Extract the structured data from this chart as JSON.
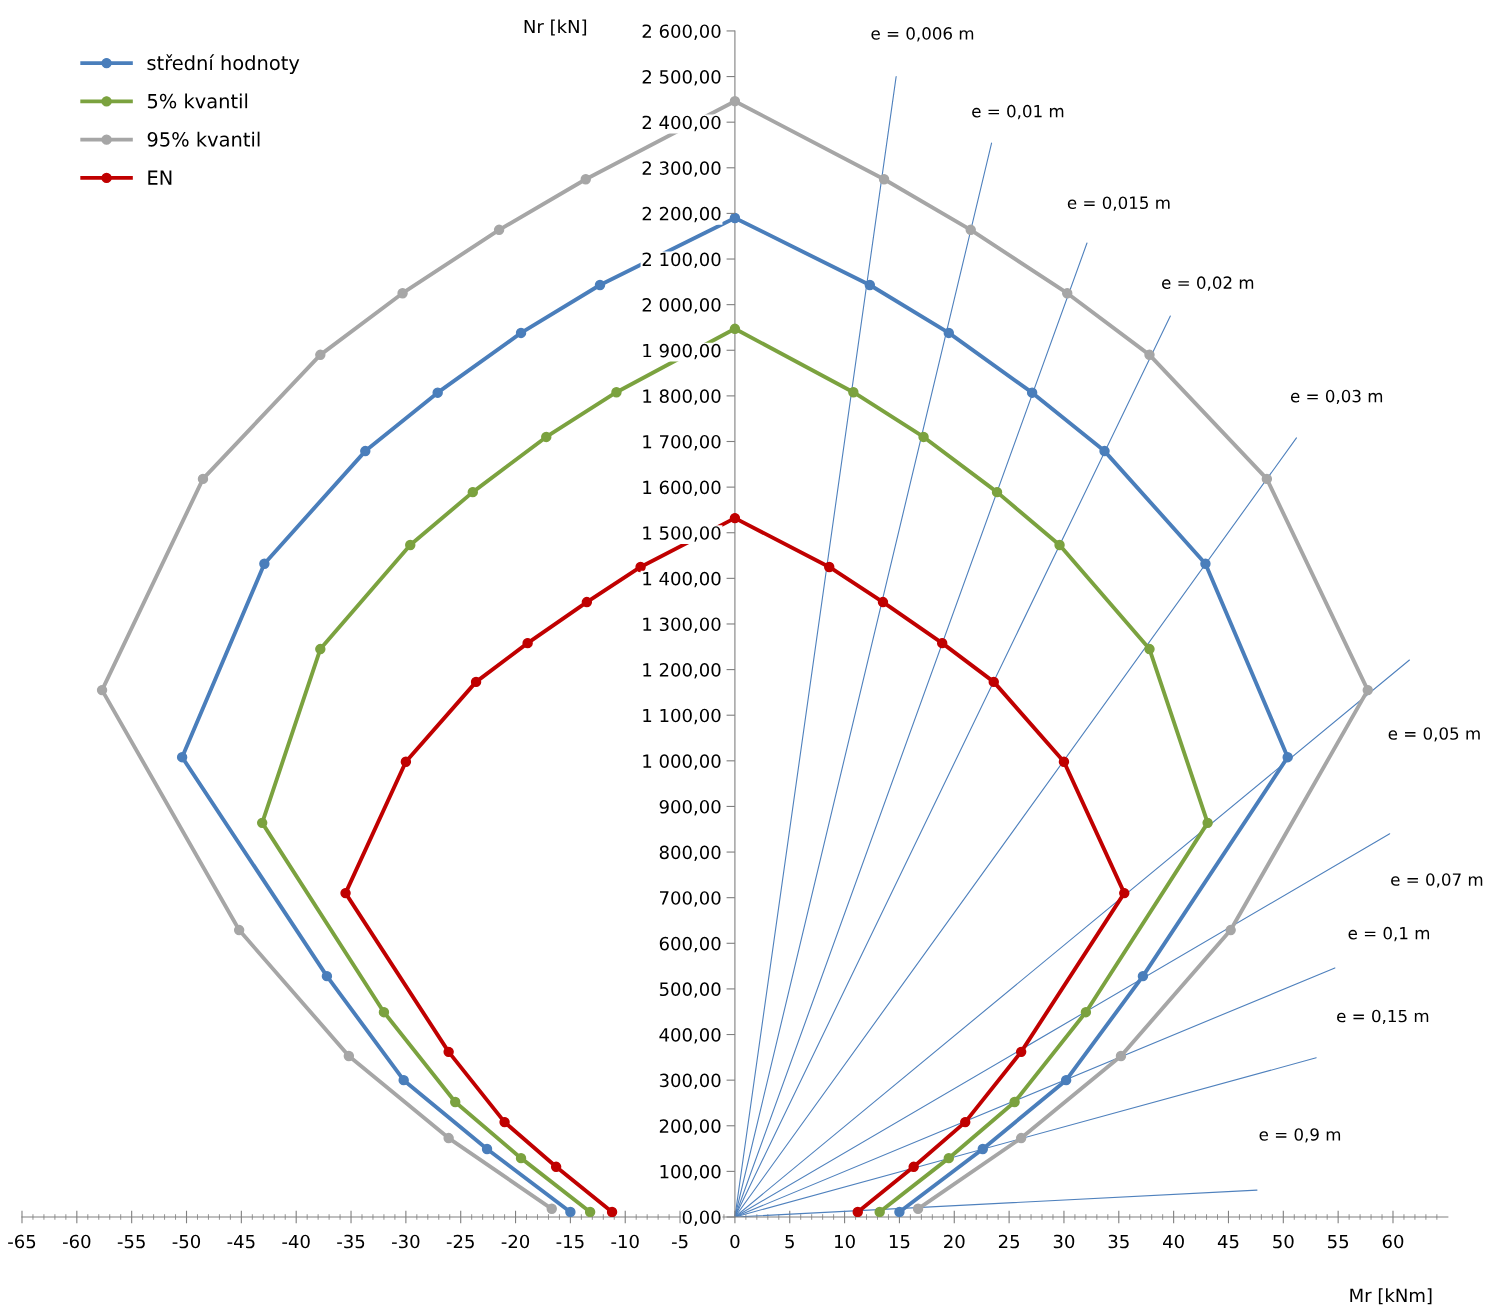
{
  "chart_data": {
    "type": "line",
    "xlabel": "Mr [kNm]",
    "ylabel": "Nr [kN]",
    "xlim": [
      -65,
      65
    ],
    "ylim": [
      0,
      2600
    ],
    "xticks": [
      -65,
      -60,
      -55,
      -50,
      -45,
      -40,
      -35,
      -30,
      -25,
      -20,
      -15,
      -10,
      -5,
      0,
      5,
      10,
      15,
      20,
      25,
      30,
      35,
      40,
      45,
      50,
      55,
      60
    ],
    "yticks": [
      {
        "value": 0,
        "label": "0,00"
      },
      {
        "value": 100,
        "label": "100,00"
      },
      {
        "value": 200,
        "label": "200,00"
      },
      {
        "value": 300,
        "label": "300,00"
      },
      {
        "value": 400,
        "label": "400,00"
      },
      {
        "value": 500,
        "label": "500,00"
      },
      {
        "value": 600,
        "label": "600,00"
      },
      {
        "value": 700,
        "label": "700,00"
      },
      {
        "value": 800,
        "label": "800,00"
      },
      {
        "value": 900,
        "label": "900,00"
      },
      {
        "value": 1000,
        "label": "1 000,00"
      },
      {
        "value": 1100,
        "label": "1 100,00"
      },
      {
        "value": 1200,
        "label": "1 200,00"
      },
      {
        "value": 1300,
        "label": "1 300,00"
      },
      {
        "value": 1400,
        "label": "1 400,00"
      },
      {
        "value": 1500,
        "label": "1 500,00"
      },
      {
        "value": 1600,
        "label": "1 600,00"
      },
      {
        "value": 1700,
        "label": "1 700,00"
      },
      {
        "value": 1800,
        "label": "1 800,00"
      },
      {
        "value": 1900,
        "label": "1 900,00"
      },
      {
        "value": 2000,
        "label": "2 000,00"
      },
      {
        "value": 2100,
        "label": "2 100,00"
      },
      {
        "value": 2200,
        "label": "2 200,00"
      },
      {
        "value": 2300,
        "label": "2 300,00"
      },
      {
        "value": 2400,
        "label": "2 400,00"
      },
      {
        "value": 2500,
        "label": "2 500,00"
      },
      {
        "value": 2600,
        "label": "2 600,00"
      }
    ],
    "grid": false,
    "legend": "top left",
    "marker": "circle",
    "series": [
      {
        "name": "střední hodnoty",
        "color": "#4a7ebb",
        "x": [
          -15.0,
          -22.6,
          -30.2,
          -37.2,
          -50.4,
          -42.9,
          -33.7,
          -27.1,
          -19.5,
          -12.3,
          0,
          12.3,
          19.5,
          27.1,
          33.7,
          42.9,
          50.4,
          37.2,
          30.2,
          22.6,
          15.0
        ],
        "values": [
          11,
          149,
          300,
          528,
          1008,
          1432,
          1679,
          1807,
          1938,
          2043,
          2190,
          2043,
          1938,
          1807,
          1679,
          1432,
          1008,
          528,
          300,
          149,
          11
        ]
      },
      {
        "name": "5% kvantil",
        "color": "#7ba23f",
        "x": [
          -13.2,
          -19.5,
          -25.5,
          -32.0,
          -43.1,
          -37.8,
          -29.6,
          -23.9,
          -17.2,
          -10.8,
          0,
          10.8,
          17.2,
          23.9,
          29.6,
          37.8,
          43.1,
          32.0,
          25.5,
          19.5,
          13.2
        ],
        "values": [
          11,
          129,
          252,
          449,
          864,
          1245,
          1473,
          1589,
          1710,
          1808,
          1947,
          1808,
          1710,
          1589,
          1473,
          1245,
          864,
          449,
          252,
          129,
          11
        ]
      },
      {
        "name": "95% kvantil",
        "color": "#a6a6a6",
        "x": [
          -16.7,
          -26.1,
          -35.2,
          -45.2,
          -57.7,
          -48.5,
          -37.8,
          -30.3,
          -21.5,
          -13.6,
          0,
          13.6,
          21.5,
          30.3,
          37.8,
          48.5,
          57.7,
          45.2,
          35.2,
          26.1,
          16.7
        ],
        "values": [
          18,
          173,
          353,
          629,
          1155,
          1618,
          1890,
          2025,
          2164,
          2275,
          2446,
          2275,
          2164,
          2025,
          1890,
          1618,
          1155,
          629,
          353,
          173,
          18
        ]
      },
      {
        "name": "EN",
        "color": "#c00000",
        "x": [
          -11.2,
          -16.3,
          -21.0,
          -26.1,
          -35.5,
          -30.0,
          -23.6,
          -18.9,
          -13.5,
          -8.6,
          0,
          8.6,
          13.5,
          18.9,
          23.6,
          30.0,
          35.5,
          26.1,
          21.0,
          16.3,
          11.2
        ],
        "values": [
          11,
          110,
          208,
          362,
          710,
          998,
          1173,
          1258,
          1348,
          1425,
          1532,
          1425,
          1348,
          1258,
          1173,
          998,
          710,
          362,
          208,
          110,
          11
        ]
      },
      {
        "color": "#4f81bd",
        "marker": "none",
        "x": [
          0,
          14.7
        ],
        "values": [
          0,
          2500
        ]
      },
      {
        "color": "#4f81bd",
        "marker": "none",
        "x": [
          0,
          23.4
        ],
        "values": [
          0,
          2354
        ]
      },
      {
        "color": "#4f81bd",
        "marker": "none",
        "x": [
          0,
          32.1
        ],
        "values": [
          0,
          2135
        ]
      },
      {
        "color": "#4f81bd",
        "marker": "none",
        "x": [
          0,
          39.7
        ],
        "values": [
          0,
          1975
        ]
      },
      {
        "color": "#4f81bd",
        "marker": "none",
        "x": [
          0,
          51.2
        ],
        "values": [
          0,
          1708
        ]
      },
      {
        "color": "#4f81bd",
        "marker": "none",
        "x": [
          0,
          61.5
        ],
        "values": [
          0,
          1221
        ]
      },
      {
        "color": "#4f81bd",
        "marker": "none",
        "x": [
          0,
          59.7
        ],
        "values": [
          0,
          840
        ]
      },
      {
        "color": "#4f81bd",
        "marker": "none",
        "x": [
          0,
          54.7
        ],
        "values": [
          0,
          546
        ]
      },
      {
        "color": "#4f81bd",
        "marker": "none",
        "x": [
          0,
          53.0
        ],
        "values": [
          0,
          349
        ]
      },
      {
        "color": "#4f81bd",
        "marker": "none",
        "x": [
          0,
          47.6
        ],
        "values": [
          0,
          59
        ]
      }
    ],
    "annotations": [
      "e = 0,006 m",
      "e = 0,01 m",
      "e = 0,015 m",
      "e = 0,02 m",
      "e = 0,03 m",
      "e = 0,05 m",
      "e = 0,07 m",
      "e = 0,1 m",
      "e = 0,15 m",
      "e = 0,9 m"
    ]
  }
}
